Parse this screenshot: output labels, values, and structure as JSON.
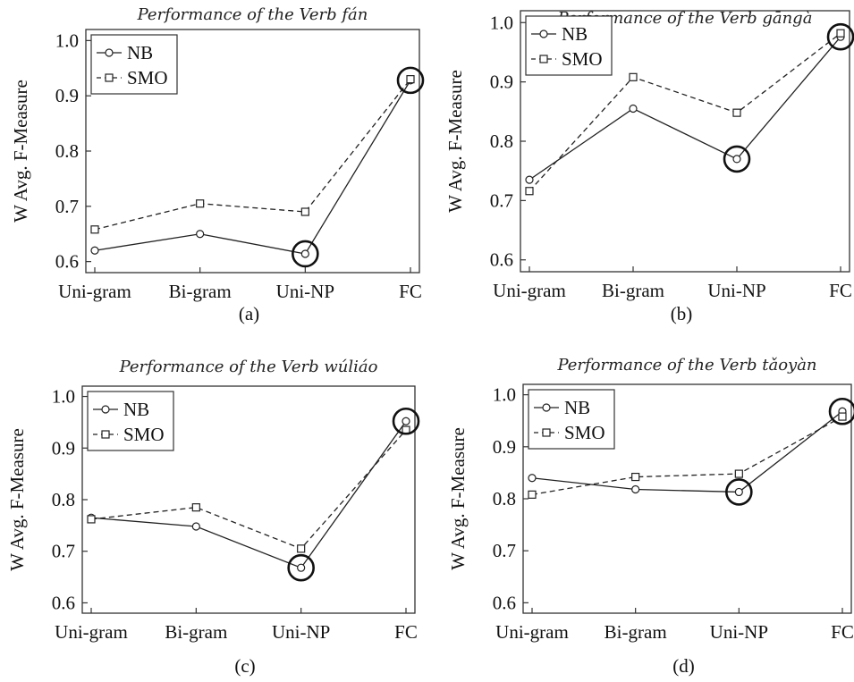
{
  "chart_data": [
    {
      "type": "line",
      "title": "Performance of the Verb fán",
      "ylabel": "W Avg. F-Measure",
      "xlabel": "",
      "categories": [
        "Uni-gram",
        "Bi-gram",
        "Uni-NP",
        "FC"
      ],
      "ylim": [
        0.58,
        1.02
      ],
      "yticks": [
        "0.6",
        "0.7",
        "0.8",
        "0.9",
        "1.0"
      ],
      "legend": "top-left",
      "series": [
        {
          "name": "NB",
          "style": "solid",
          "marker": "circle",
          "values": [
            0.62,
            0.65,
            0.614,
            0.928
          ]
        },
        {
          "name": "SMO",
          "style": "dashed",
          "marker": "square",
          "values": [
            0.658,
            0.705,
            0.69,
            0.93
          ]
        }
      ],
      "highlight_circles": [
        2,
        3
      ],
      "caption": "(a)"
    },
    {
      "type": "line",
      "title": "Performance of the Verb gāngà",
      "ylabel": "W Avg. F-Measure",
      "xlabel": "",
      "categories": [
        "Uni-gram",
        "Bi-gram",
        "Uni-NP",
        "FC"
      ],
      "ylim": [
        0.58,
        1.02
      ],
      "yticks": [
        "0.6",
        "0.7",
        "0.8",
        "0.9",
        "1.0"
      ],
      "legend": "top-left",
      "series": [
        {
          "name": "NB",
          "style": "solid",
          "marker": "circle",
          "values": [
            0.735,
            0.855,
            0.77,
            0.976
          ]
        },
        {
          "name": "SMO",
          "style": "dashed",
          "marker": "square",
          "values": [
            0.716,
            0.908,
            0.848,
            0.982
          ]
        }
      ],
      "highlight_circles": [
        2,
        3
      ],
      "caption": "(b)"
    },
    {
      "type": "line",
      "title": "Performance of the Verb wúliáo",
      "ylabel": "W Avg. F-Measure",
      "xlabel": "",
      "categories": [
        "Uni-gram",
        "Bi-gram",
        "Uni-NP",
        "FC"
      ],
      "ylim": [
        0.58,
        1.02
      ],
      "yticks": [
        "0.6",
        "0.7",
        "0.8",
        "0.9",
        "1.0"
      ],
      "legend": "top-left",
      "series": [
        {
          "name": "NB",
          "style": "solid",
          "marker": "circle",
          "values": [
            0.765,
            0.748,
            0.668,
            0.952
          ]
        },
        {
          "name": "SMO",
          "style": "dashed",
          "marker": "square",
          "values": [
            0.762,
            0.785,
            0.705,
            0.935
          ]
        }
      ],
      "highlight_circles": [
        2,
        3
      ],
      "caption": "(c)"
    },
    {
      "type": "line",
      "title": "Performance of the Verb tǎoyàn",
      "ylabel": "W Avg. F-Measure",
      "xlabel": "",
      "categories": [
        "Uni-gram",
        "Bi-gram",
        "Uni-NP",
        "FC"
      ],
      "ylim": [
        0.58,
        1.02
      ],
      "yticks": [
        "0.6",
        "0.7",
        "0.8",
        "0.9",
        "1.0"
      ],
      "legend": "top-left",
      "series": [
        {
          "name": "NB",
          "style": "solid",
          "marker": "circle",
          "values": [
            0.84,
            0.818,
            0.813,
            0.968
          ]
        },
        {
          "name": "SMO",
          "style": "dashed",
          "marker": "square",
          "values": [
            0.808,
            0.842,
            0.848,
            0.958
          ]
        }
      ],
      "highlight_circles": [
        2,
        3
      ],
      "caption": "(d)"
    }
  ]
}
